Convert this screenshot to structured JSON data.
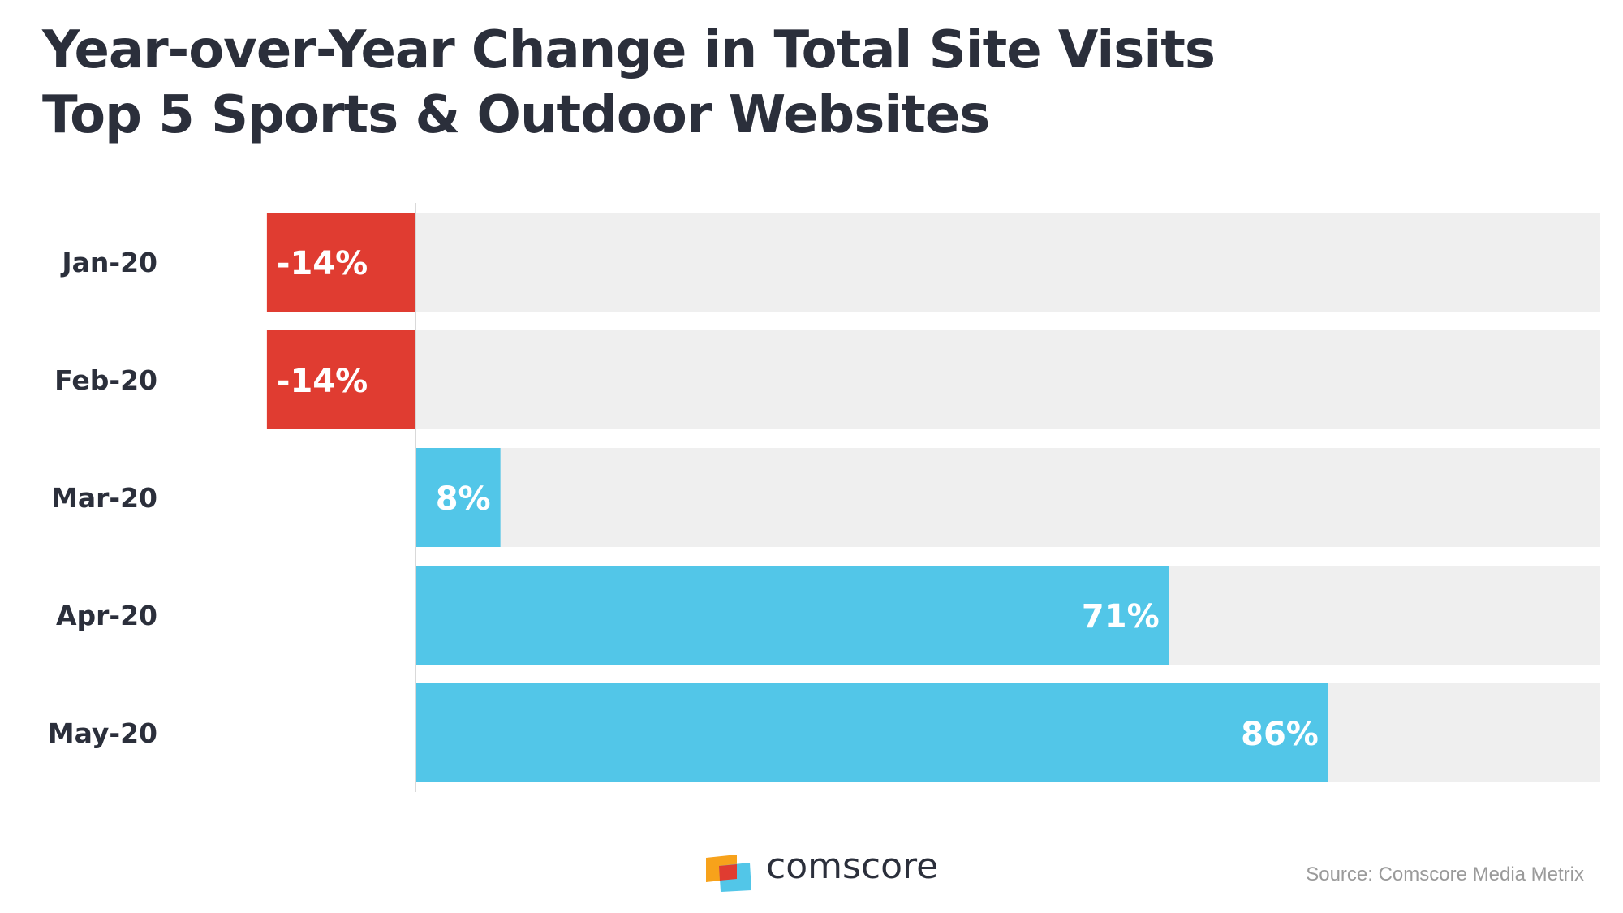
{
  "title": {
    "line1": "Year-over-Year Change in Total Site Visits",
    "line2": "Top 5 Sports & Outdoor Websites"
  },
  "chart_data": {
    "type": "bar",
    "orientation": "horizontal",
    "title": "Year-over-Year Change in Total Site Visits Top 5 Sports & Outdoor Websites",
    "categories": [
      "Jan-20",
      "Feb-20",
      "Mar-20",
      "Apr-20",
      "May-20"
    ],
    "values": [
      -14,
      -14,
      8,
      71,
      86
    ],
    "value_labels": [
      "-14%",
      "-14%",
      "8%",
      "71%",
      "86%"
    ],
    "xlim": [
      -14,
      100
    ],
    "unit": "%",
    "grid": false,
    "colors": {
      "negative": "#e03c31",
      "positive": "#52c6e8",
      "track": "#efefef",
      "axis": "#d9d9d9",
      "label": "#2b2f3b"
    }
  },
  "footer": {
    "brand": "comscore",
    "source": "Source: Comscore Media Metrix"
  }
}
